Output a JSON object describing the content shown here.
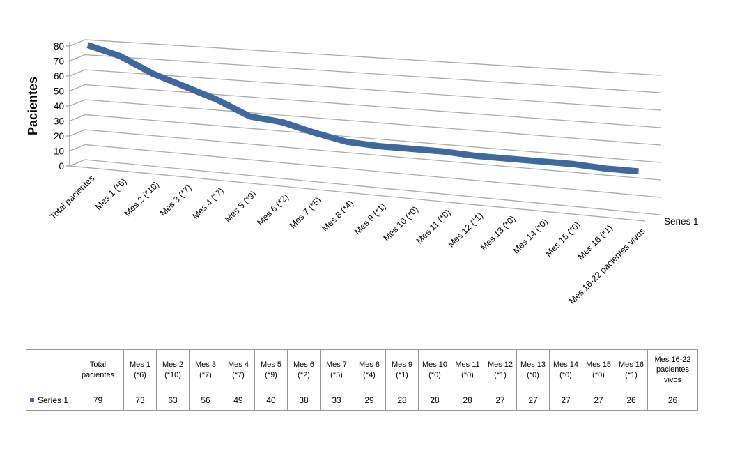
{
  "chart_data": {
    "type": "line",
    "projection": "3d-oblique",
    "title": "",
    "xlabel": "",
    "ylabel": "Pacientes",
    "ylim": [
      0,
      80
    ],
    "ytick_step": 10,
    "grid": true,
    "legend_position": "right",
    "categories": [
      "Total pacientes",
      "Mes 1 (*6)",
      "Mes 2 (*10)",
      "Mes 3 (*7)",
      "Mes 4 (*7)",
      "Mes 5 (*9)",
      "Mes 6 (*2)",
      "Mes 7 (*5)",
      "Mes 8 (*4)",
      "Mes 9 (*1)",
      "Mes 10 (*0)",
      "Mes 11 (*0)",
      "Mes 12 (*1)",
      "Mes 13 (*0)",
      "Mes 14 (*0)",
      "Mes 15 (*0)",
      "Mes 16 (*1)",
      "Mes 16-22 pacientes vivos"
    ],
    "series": [
      {
        "name": "Series 1",
        "values": [
          79,
          73,
          63,
          56,
          49,
          40,
          38,
          33,
          29,
          28,
          28,
          28,
          27,
          27,
          27,
          27,
          26,
          26
        ]
      }
    ]
  },
  "colors": {
    "series_line": "#3F699E",
    "gridline": "#ABABAB",
    "axis": "#9B9B9B",
    "table_border": "#979797",
    "text": "#000000"
  },
  "legend": {
    "label": "Series 1"
  },
  "table": {
    "row_label": "Series 1"
  }
}
